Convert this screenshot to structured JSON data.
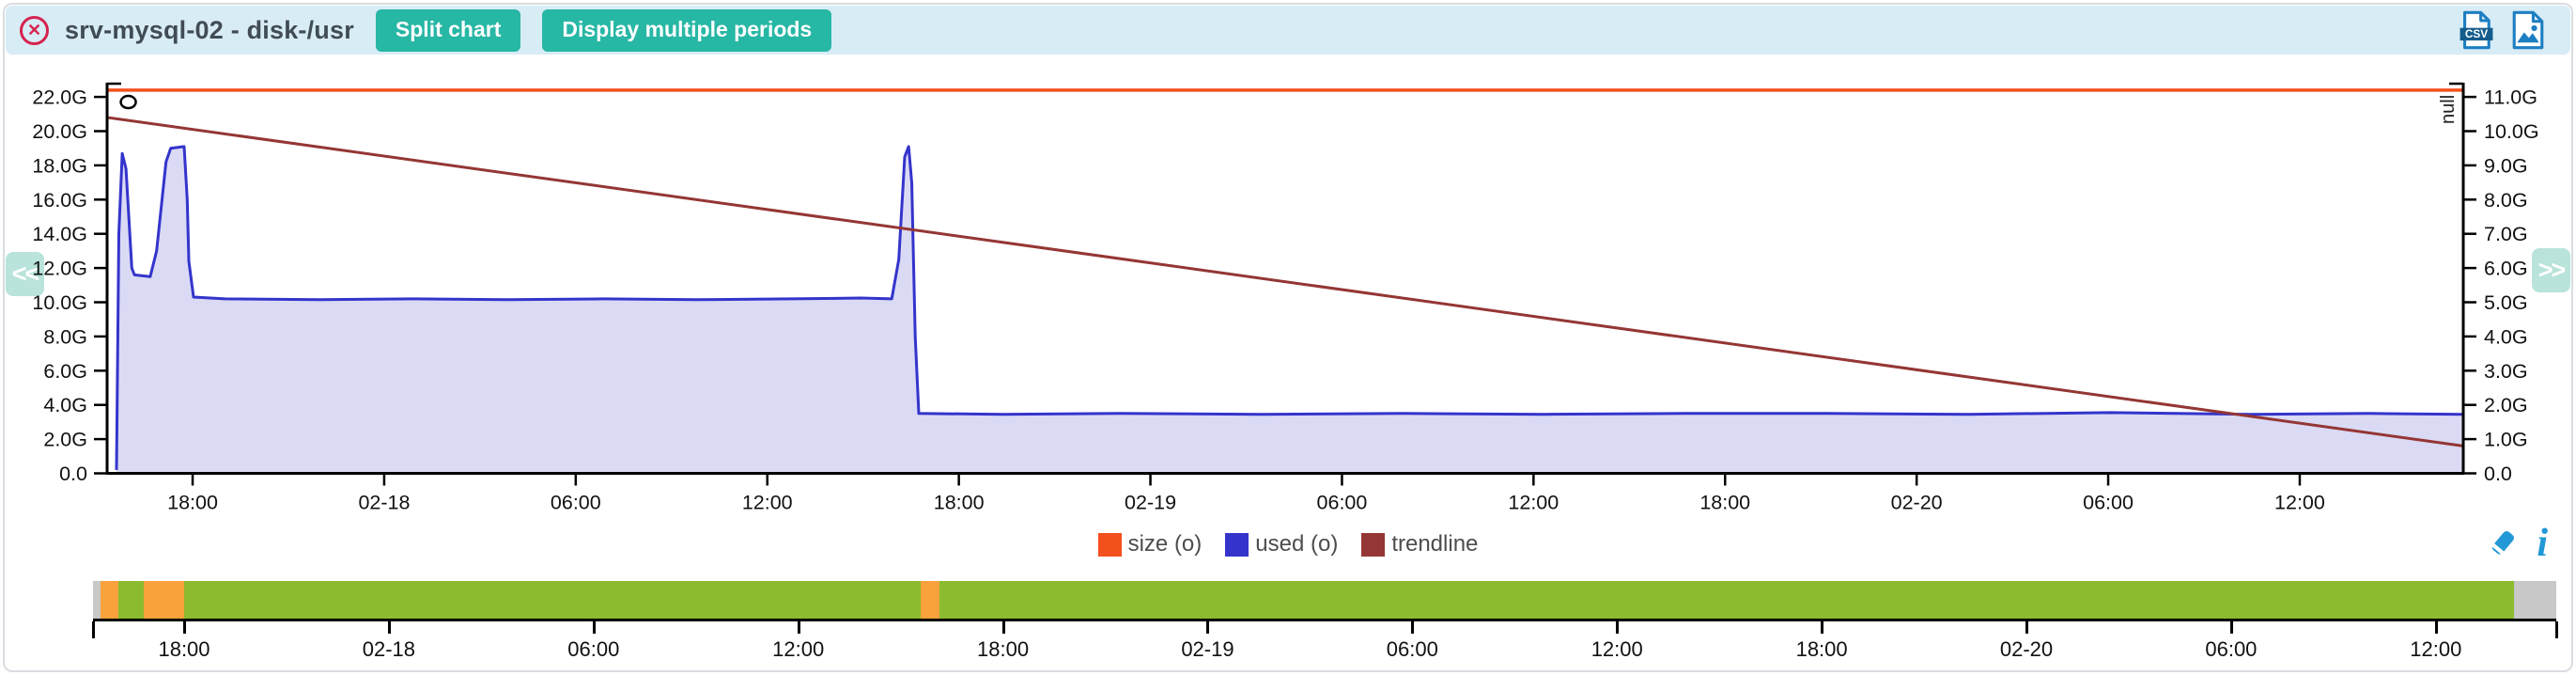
{
  "header": {
    "title": "srv-mysql-02 - disk-/usr",
    "split_chart_label": "Split chart",
    "multi_periods_label": "Display multiple periods",
    "csv_label": "CSV"
  },
  "nav": {
    "prev_label": "<<",
    "next_label": ">>"
  },
  "colors": {
    "header_bg": "#d8ecf6",
    "teal": "#27b7a5",
    "close_red": "#d5244e",
    "icon_blue": "#1d7fc2",
    "icon_band_blue": "#145c8c",
    "tool_blue": "#2299d6",
    "size_line": "#f4501e",
    "used_line": "#3434cc",
    "used_fill": "#dadaf5",
    "trend_line": "#943634",
    "bar_green": "#8cbb2f",
    "bar_orange": "#f9a13a",
    "bar_gray": "#c8c8c8",
    "axis_text": "#111111",
    "legend_text": "#4d4d4d"
  },
  "legend": {
    "items": [
      {
        "label": "size (o)",
        "color": "#f4501e"
      },
      {
        "label": "used (o)",
        "color": "#3434cc"
      },
      {
        "label": "trendline",
        "color": "#943634"
      }
    ]
  },
  "chart_data": {
    "type": "area",
    "title": "srv-mysql-02 - disk-/usr",
    "grid": false,
    "legend_position": "bottom-center",
    "y_left": {
      "unit": "G",
      "tick_labels": [
        "0.0",
        "2.0G",
        "4.0G",
        "6.0G",
        "8.0G",
        "10.0G",
        "12.0G",
        "14.0G",
        "16.0G",
        "18.0G",
        "20.0G",
        "22.0G"
      ],
      "tick_values": [
        0,
        2,
        4,
        6,
        8,
        10,
        12,
        14,
        16,
        18,
        20,
        22
      ],
      "range": [
        0,
        22.9
      ]
    },
    "y_right": {
      "title": "null",
      "tick_labels": [
        "0.0",
        "1.0G",
        "2.0G",
        "3.0G",
        "4.0G",
        "5.0G",
        "6.0G",
        "7.0G",
        "8.0G",
        "9.0G",
        "10.0G",
        "11.0G"
      ],
      "tick_values": [
        0,
        1,
        2,
        3,
        4,
        5,
        6,
        7,
        8,
        9,
        10,
        11
      ],
      "range": [
        0,
        11.45
      ]
    },
    "x": {
      "tick_labels": [
        "18:00",
        "02-18",
        "06:00",
        "12:00",
        "18:00",
        "02-19",
        "06:00",
        "12:00",
        "18:00",
        "02-20",
        "06:00",
        "12:00"
      ],
      "first_tick_frac": 0.0363,
      "tick_step_frac": 0.0813
    },
    "series": [
      {
        "name": "size (o)",
        "type": "hline",
        "axis": "left",
        "color": "#f4501e",
        "value": 22.4
      },
      {
        "name": "used (o)",
        "type": "area",
        "axis": "left",
        "color": "#3434cc",
        "fill": "#dadaf5",
        "points_frac_value": [
          [
            0.004,
            0.2
          ],
          [
            0.005,
            14.0
          ],
          [
            0.0064,
            18.7
          ],
          [
            0.008,
            17.8
          ],
          [
            0.0105,
            12.0
          ],
          [
            0.0116,
            11.6
          ],
          [
            0.0183,
            11.5
          ],
          [
            0.021,
            13.0
          ],
          [
            0.025,
            18.2
          ],
          [
            0.027,
            19.0
          ],
          [
            0.0327,
            19.1
          ],
          [
            0.034,
            16.0
          ],
          [
            0.0347,
            12.4
          ],
          [
            0.0367,
            10.3
          ],
          [
            0.05,
            10.2
          ],
          [
            0.09,
            10.15
          ],
          [
            0.13,
            10.2
          ],
          [
            0.17,
            10.15
          ],
          [
            0.21,
            10.2
          ],
          [
            0.25,
            10.15
          ],
          [
            0.29,
            10.2
          ],
          [
            0.32,
            10.25
          ],
          [
            0.333,
            10.2
          ],
          [
            0.336,
            12.5
          ],
          [
            0.3385,
            18.5
          ],
          [
            0.3402,
            19.1
          ],
          [
            0.3415,
            17.0
          ],
          [
            0.343,
            8.0
          ],
          [
            0.3445,
            3.5
          ],
          [
            0.38,
            3.45
          ],
          [
            0.43,
            3.5
          ],
          [
            0.49,
            3.45
          ],
          [
            0.55,
            3.5
          ],
          [
            0.61,
            3.45
          ],
          [
            0.67,
            3.5
          ],
          [
            0.73,
            3.5
          ],
          [
            0.79,
            3.45
          ],
          [
            0.85,
            3.55
          ],
          [
            0.91,
            3.45
          ],
          [
            0.96,
            3.5
          ],
          [
            1.0,
            3.45
          ]
        ]
      },
      {
        "name": "trendline",
        "type": "line",
        "axis": "left",
        "color": "#943634",
        "points_frac_value": [
          [
            0,
            20.8
          ],
          [
            1,
            1.6
          ]
        ]
      }
    ],
    "marker": {
      "shape": "circle",
      "x_frac": 0.009,
      "value": 21.7
    }
  },
  "minimap": {
    "x_tick_labels": [
      "18:00",
      "02-18",
      "06:00",
      "12:00",
      "18:00",
      "02-19",
      "06:00",
      "12:00",
      "18:00",
      "02-20",
      "06:00",
      "12:00"
    ],
    "first_tick_frac": 0.037,
    "tick_step_frac": 0.0831,
    "segments": [
      {
        "color": "#c8c8c8",
        "from": 0.0,
        "to": 0.0031
      },
      {
        "color": "#f9a13a",
        "from": 0.0031,
        "to": 0.0103
      },
      {
        "color": "#8cbb2f",
        "from": 0.0103,
        "to": 0.0206
      },
      {
        "color": "#f9a13a",
        "from": 0.0206,
        "to": 0.037
      },
      {
        "color": "#8cbb2f",
        "from": 0.037,
        "to": 0.336
      },
      {
        "color": "#f9a13a",
        "from": 0.336,
        "to": 0.3437
      },
      {
        "color": "#8cbb2f",
        "from": 0.3437,
        "to": 0.983
      },
      {
        "color": "#c8c8c8",
        "from": 0.983,
        "to": 1.0
      }
    ]
  }
}
